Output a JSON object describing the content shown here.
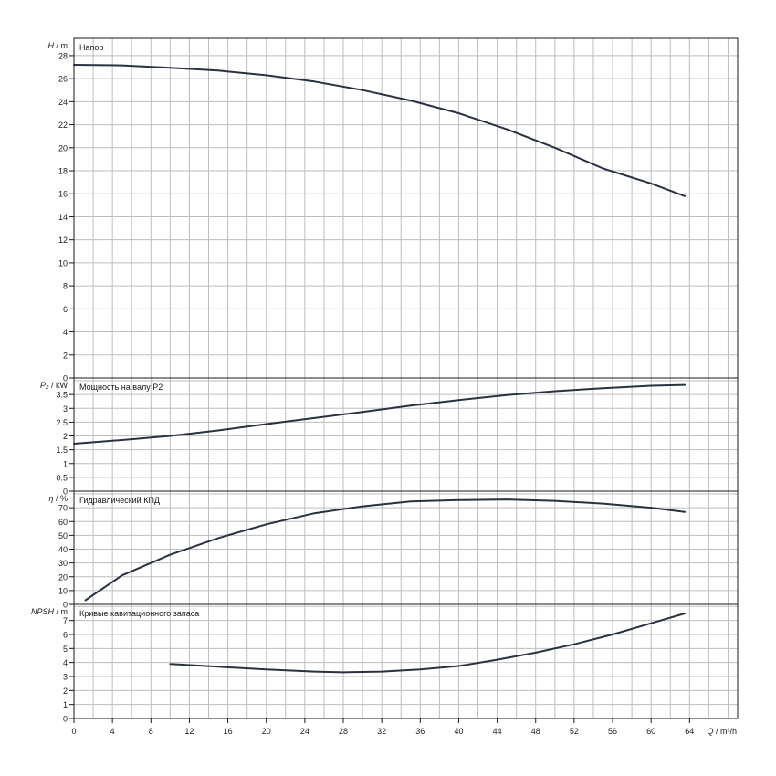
{
  "chart_data": [
    {
      "type": "line",
      "title": "Напор",
      "axis_symbol": "H",
      "axis_unit": "m",
      "ylim": [
        0,
        29.5
      ],
      "yticks": [
        0,
        2,
        4,
        6,
        8,
        10,
        12,
        14,
        16,
        18,
        20,
        22,
        24,
        26,
        28
      ],
      "ytick_labels": [
        "0",
        "2",
        "4",
        "6",
        "8",
        "10",
        "12",
        "14",
        "16",
        "18",
        "20",
        "22",
        "24",
        "26",
        "28"
      ],
      "ygrid_step": 2,
      "series": [
        {
          "x": [
            0,
            5,
            10,
            15,
            20,
            25,
            30,
            35,
            40,
            45,
            50,
            55,
            60,
            63.5
          ],
          "y": [
            27.2,
            27.15,
            26.95,
            26.7,
            26.3,
            25.75,
            25.0,
            24.1,
            23.0,
            21.6,
            20.0,
            18.2,
            16.9,
            15.8
          ]
        }
      ]
    },
    {
      "type": "line",
      "title": "Мощность на валу P2",
      "axis_symbol": "P₂",
      "axis_unit": "kW",
      "ylim": [
        0,
        4.1
      ],
      "yticks": [
        0,
        0.5,
        1,
        1.5,
        2,
        2.5,
        3,
        3.5
      ],
      "ytick_labels": [
        "0",
        "0.5",
        "1",
        "1.5",
        "2",
        "2.5",
        "3",
        "3.5"
      ],
      "ygrid_step": 0.5,
      "series": [
        {
          "x": [
            0,
            5,
            10,
            15,
            20,
            25,
            30,
            35,
            40,
            45,
            50,
            55,
            60,
            63.5
          ],
          "y": [
            1.72,
            1.85,
            2.0,
            2.2,
            2.43,
            2.65,
            2.87,
            3.1,
            3.3,
            3.48,
            3.62,
            3.73,
            3.82,
            3.85
          ]
        }
      ]
    },
    {
      "type": "line",
      "title": "Гидравлический КПД",
      "axis_symbol": "η",
      "axis_unit": "%",
      "ylim": [
        0,
        82
      ],
      "yticks": [
        0,
        10,
        20,
        30,
        40,
        50,
        60,
        70
      ],
      "ytick_labels": [
        "0",
        "10",
        "20",
        "30",
        "40",
        "50",
        "60",
        "70"
      ],
      "ygrid_step": 10,
      "series": [
        {
          "x": [
            1.2,
            5,
            10,
            15,
            20,
            25,
            30,
            35,
            40,
            45,
            50,
            55,
            60,
            63.5
          ],
          "y": [
            3,
            21,
            36,
            48,
            58,
            66,
            71,
            74.5,
            75.5,
            76,
            75,
            73,
            70,
            67
          ]
        }
      ]
    },
    {
      "type": "line",
      "title": "Кривые кавитационного запаса",
      "axis_symbol": "NPSH",
      "axis_unit": "m",
      "ylim": [
        0,
        8.15
      ],
      "yticks": [
        0,
        1,
        2,
        3,
        4,
        5,
        6,
        7
      ],
      "ytick_labels": [
        "0",
        "1",
        "2",
        "3",
        "4",
        "5",
        "6",
        "7"
      ],
      "ygrid_step": 1,
      "series": [
        {
          "x": [
            10,
            15,
            20,
            25,
            28,
            32,
            36,
            40,
            44,
            48,
            52,
            56,
            60,
            63.5
          ],
          "y": [
            3.9,
            3.7,
            3.5,
            3.35,
            3.3,
            3.35,
            3.5,
            3.75,
            4.2,
            4.7,
            5.3,
            6.0,
            6.8,
            7.5
          ]
        }
      ]
    }
  ],
  "x_axis": {
    "symbol": "Q",
    "unit": "m³/h",
    "xlim": [
      0,
      69
    ],
    "ticks": [
      0,
      4,
      8,
      12,
      16,
      20,
      24,
      28,
      32,
      36,
      40,
      44,
      48,
      52,
      56,
      60,
      64
    ],
    "tick_labels": [
      "0",
      "4",
      "8",
      "12",
      "16",
      "20",
      "24",
      "28",
      "32",
      "36",
      "40",
      "44",
      "48",
      "52",
      "56",
      "60",
      "64"
    ],
    "grid_step": 2
  },
  "colors": {
    "curve": "#2a3140",
    "grid": "#bdbdbd",
    "frame": "#1a1a1a",
    "text": "#1a1a1a"
  }
}
